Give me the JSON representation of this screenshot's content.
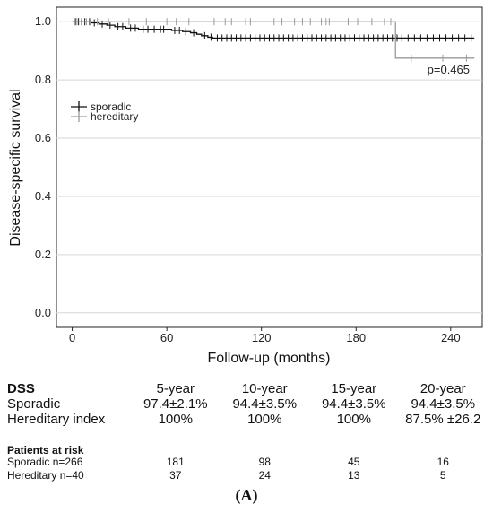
{
  "chart_data": {
    "type": "line",
    "subtype": "kaplan-meier",
    "ylabel": "Disease-specific survival",
    "xlabel": "Follow-up (months)",
    "xlim": [
      -10,
      260
    ],
    "ylim": [
      -0.05,
      1.05
    ],
    "xticks": [
      0,
      60,
      120,
      180,
      240
    ],
    "yticks": [
      0.0,
      0.2,
      0.4,
      0.6,
      0.8,
      1.0
    ],
    "ytick_labels": [
      "0.0",
      "0.2",
      "0.4",
      "0.6",
      "0.8",
      "1.0"
    ],
    "grid": "horizontal",
    "legend_position": "upper-left",
    "annotation": "p=0.465",
    "series": [
      {
        "name": "sporadic",
        "color": "#111111",
        "steps": [
          [
            0,
            1.0
          ],
          [
            12,
            0.996
          ],
          [
            17,
            0.992
          ],
          [
            22,
            0.988
          ],
          [
            27,
            0.983
          ],
          [
            34,
            0.978
          ],
          [
            42,
            0.974
          ],
          [
            60,
            0.974
          ],
          [
            63,
            0.97
          ],
          [
            70,
            0.966
          ],
          [
            75,
            0.962
          ],
          [
            79,
            0.957
          ],
          [
            82,
            0.952
          ],
          [
            86,
            0.947
          ],
          [
            89,
            0.944
          ],
          [
            255,
            0.944
          ]
        ],
        "censored": [
          2,
          4,
          6,
          8,
          11,
          14,
          19,
          24,
          29,
          32,
          37,
          40,
          45,
          48,
          52,
          56,
          58,
          65,
          68,
          72,
          77,
          84,
          88,
          92,
          95,
          98,
          101,
          104,
          107,
          110,
          113,
          116,
          119,
          122,
          125,
          128,
          131,
          134,
          137,
          140,
          143,
          146,
          149,
          152,
          155,
          158,
          161,
          164,
          167,
          170,
          173,
          176,
          179,
          182,
          185,
          188,
          191,
          194,
          197,
          200,
          203,
          206,
          209,
          213,
          217,
          221,
          225,
          229,
          233,
          237,
          241,
          245,
          249,
          253
        ]
      },
      {
        "name": "hereditary",
        "color": "#9a9a9a",
        "steps": [
          [
            0,
            1.0
          ],
          [
            205,
            1.0
          ],
          [
            205,
            0.875
          ],
          [
            255,
            0.875
          ]
        ],
        "censored": [
          3,
          9,
          16,
          23,
          36,
          47,
          60,
          66,
          74,
          90,
          97,
          101,
          110,
          113,
          128,
          133,
          141,
          146,
          151,
          158,
          161,
          163,
          175,
          181,
          190,
          198,
          202,
          215,
          235,
          250
        ]
      }
    ]
  },
  "dss_table": {
    "header": "DSS",
    "columns": [
      "5-year",
      "10-year",
      "15-year",
      "20-year"
    ],
    "rows": [
      {
        "label": "Sporadic",
        "values": [
          "97.4±2.1%",
          "94.4±3.5%",
          "94.4±3.5%",
          "94.4±3.5%"
        ]
      },
      {
        "label": "Hereditary index",
        "values": [
          "100%",
          "100%",
          "100%",
          "87.5% ±26.2"
        ]
      }
    ]
  },
  "risk_table": {
    "title": "Patients at risk",
    "rows": [
      {
        "label": "Sporadic n=266",
        "values": [
          "181",
          "98",
          "45",
          "16"
        ]
      },
      {
        "label": "Hereditary n=40",
        "values": [
          "37",
          "24",
          "13",
          "5"
        ]
      }
    ]
  },
  "panel_label": "(A)"
}
